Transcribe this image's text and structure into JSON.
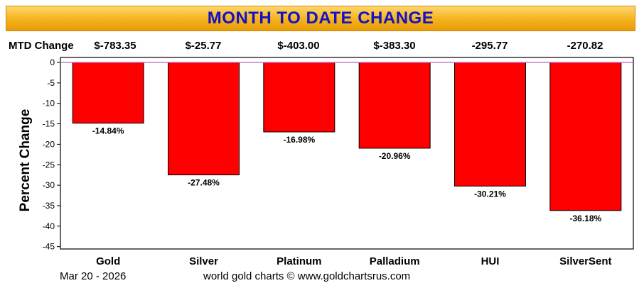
{
  "title": "MONTH TO DATE CHANGE",
  "mtd_label": "MTD Change",
  "mtd_values": [
    "$-783.35",
    "$-25.77",
    "$-403.00",
    "$-383.30",
    "-295.77",
    "-270.82"
  ],
  "footer": {
    "date": "Mar 20 - 2026",
    "credit": "world gold charts © www.goldchartsrus.com"
  },
  "colors": {
    "bar": "#ff0000",
    "title_text": "#1212c8",
    "zero_line": "#c060c0"
  },
  "chart_data": {
    "type": "bar",
    "categories": [
      "Gold",
      "Silver",
      "Platinum",
      "Palladium",
      "HUI",
      "SilverSent"
    ],
    "values": [
      -14.84,
      -27.48,
      -16.98,
      -20.96,
      -30.21,
      -36.18
    ],
    "value_labels": [
      "-14.84%",
      "-27.48%",
      "-16.98%",
      "-20.96%",
      "-30.21%",
      "-36.18%"
    ],
    "ylabel": "Percent Change",
    "ylim": [
      -47,
      0
    ],
    "yticks": [
      0,
      -5,
      -10,
      -15,
      -20,
      -25,
      -30,
      -35,
      -40,
      -45
    ],
    "grid": false,
    "legend": "none"
  }
}
